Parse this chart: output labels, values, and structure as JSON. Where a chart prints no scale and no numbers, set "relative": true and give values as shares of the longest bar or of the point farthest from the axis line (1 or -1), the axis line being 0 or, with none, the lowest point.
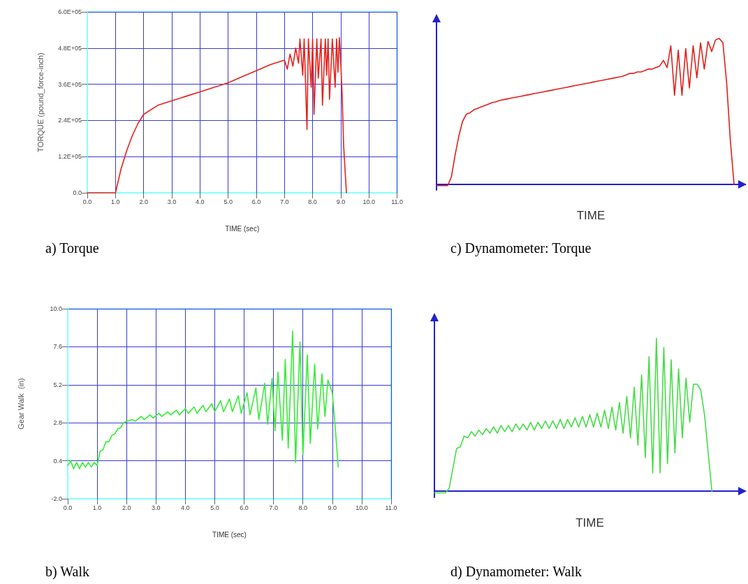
{
  "chart_data": [
    {
      "type": "line",
      "title": "a) Torque",
      "xlabel": "TIME (sec)",
      "ylabel": "TORQUE (pound_force-inch)",
      "grid": true,
      "marker": "none",
      "line_style": "solid",
      "xlim": [
        0,
        11
      ],
      "xticks": [
        {
          "value": 0,
          "label": "0.0"
        },
        {
          "value": 1,
          "label": "1.0"
        },
        {
          "value": 2,
          "label": "2.0"
        },
        {
          "value": 3,
          "label": "3.0"
        },
        {
          "value": 4,
          "label": "4.0"
        },
        {
          "value": 5,
          "label": "5.0"
        },
        {
          "value": 6,
          "label": "6.0"
        },
        {
          "value": 7,
          "label": "7.0"
        },
        {
          "value": 8,
          "label": "8.0"
        },
        {
          "value": 9,
          "label": "9.0"
        },
        {
          "value": 10,
          "label": "10.0"
        },
        {
          "value": 11,
          "label": "11.0"
        }
      ],
      "ylim": [
        0,
        600000
      ],
      "yticks": [
        {
          "value": 0,
          "label": "0.0"
        },
        {
          "value": 120000,
          "label": "1.2E+05"
        },
        {
          "value": 240000,
          "label": "2.4E+05"
        },
        {
          "value": 360000,
          "label": "3.6E+05"
        },
        {
          "value": 480000,
          "label": "4.8E+05"
        },
        {
          "value": 600000,
          "label": "6.0E+05"
        }
      ],
      "x": [
        0,
        1,
        1.1,
        1.2,
        1.4,
        1.6,
        1.8,
        2,
        2.5,
        3,
        3.5,
        4,
        4.5,
        5,
        5.5,
        6,
        6.5,
        7,
        7.1,
        7.2,
        7.3,
        7.4,
        7.5,
        7.55,
        7.65,
        7.7,
        7.8,
        7.85,
        7.95,
        8,
        8.05,
        8.15,
        8.2,
        8.3,
        8.35,
        8.45,
        8.5,
        8.55,
        8.6,
        8.7,
        8.8,
        8.85,
        8.9,
        8.95,
        9,
        9.05,
        9.1,
        9.2
      ],
      "series": [
        {
          "color": "#e8201a",
          "values": [
            0,
            0,
            40000,
            80000,
            140000,
            190000,
            230000,
            260000,
            290000,
            305000,
            320000,
            335000,
            350000,
            365000,
            385000,
            405000,
            425000,
            440000,
            410000,
            460000,
            420000,
            480000,
            430000,
            510000,
            390000,
            510000,
            210000,
            510000,
            350000,
            510000,
            260000,
            510000,
            380000,
            510000,
            290000,
            510000,
            390000,
            510000,
            310000,
            510000,
            350000,
            510000,
            400000,
            515000,
            430000,
            320000,
            160000,
            0
          ]
        }
      ]
    },
    {
      "type": "line",
      "title": "b) Walk",
      "xlabel": "TIME (sec)",
      "ylabel": "Gear Walk  (in)",
      "grid": true,
      "marker": "none",
      "line_style": "solid",
      "xlim": [
        0,
        11
      ],
      "xticks": [
        {
          "value": 0,
          "label": "0.0"
        },
        {
          "value": 1,
          "label": "1.0"
        },
        {
          "value": 2,
          "label": "2.0"
        },
        {
          "value": 3,
          "label": "3.0"
        },
        {
          "value": 4,
          "label": "4.0"
        },
        {
          "value": 5,
          "label": "5.0"
        },
        {
          "value": 6,
          "label": "6.0"
        },
        {
          "value": 7,
          "label": "7.0"
        },
        {
          "value": 8,
          "label": "8.0"
        },
        {
          "value": 9,
          "label": "9.0"
        },
        {
          "value": 10,
          "label": "10.0"
        },
        {
          "value": 11,
          "label": "11.0"
        }
      ],
      "ylim": [
        -2,
        10
      ],
      "yticks": [
        {
          "value": -2,
          "label": "-2.0"
        },
        {
          "value": 0.4,
          "label": "0.4"
        },
        {
          "value": 2.8,
          "label": "2.8"
        },
        {
          "value": 5.2,
          "label": "5.2"
        },
        {
          "value": 7.6,
          "label": "7.6"
        },
        {
          "value": 10,
          "label": "10.0"
        }
      ],
      "x": [
        0,
        0.1,
        0.2,
        0.3,
        0.4,
        0.5,
        0.6,
        0.7,
        0.8,
        0.9,
        1,
        1.1,
        1.2,
        1.3,
        1.4,
        1.5,
        1.6,
        1.7,
        1.8,
        1.9,
        2,
        2.2,
        2.3,
        2.5,
        2.6,
        2.8,
        2.9,
        3.1,
        3.2,
        3.4,
        3.5,
        3.7,
        3.8,
        4,
        4.1,
        4.3,
        4.4,
        4.6,
        4.7,
        4.9,
        5,
        5.2,
        5.3,
        5.5,
        5.6,
        5.8,
        5.9,
        6.1,
        6.2,
        6.4,
        6.5,
        6.7,
        6.8,
        6.95,
        7.05,
        7.15,
        7.3,
        7.4,
        7.5,
        7.65,
        7.75,
        7.9,
        8,
        8.15,
        8.25,
        8.4,
        8.5,
        8.65,
        8.75,
        8.85,
        9,
        9.1,
        9.2
      ],
      "series": [
        {
          "color": "#33ee33",
          "values": [
            0.1,
            0.4,
            -0.1,
            0.3,
            -0.1,
            0.3,
            0,
            0.3,
            0,
            0.3,
            0.1,
            1,
            1.1,
            1.6,
            1.6,
            2,
            2.1,
            2.4,
            2.5,
            2.8,
            2.9,
            3,
            2.9,
            3.2,
            3,
            3.3,
            3.1,
            3.4,
            3.2,
            3.5,
            3.3,
            3.6,
            3.3,
            3.7,
            3.4,
            3.8,
            3.4,
            3.9,
            3.5,
            4,
            3.5,
            4.2,
            3.5,
            4.3,
            3.5,
            4.5,
            3.4,
            4.7,
            3.3,
            5,
            3,
            5.3,
            2.7,
            5.6,
            2.3,
            6,
            1.7,
            6.8,
            1.2,
            8.6,
            0.3,
            7.9,
            0.8,
            7.1,
            1.5,
            6.5,
            2.4,
            5.9,
            3.2,
            5.5,
            4.7,
            2.5,
            0
          ]
        }
      ]
    },
    {
      "type": "line",
      "title": "c) Dynamometer: Torque",
      "xlabel": "TIME",
      "relative": true,
      "grid": false,
      "marker": "none",
      "line_style": "solid",
      "categories": [
        null,
        null,
        null,
        null,
        null,
        null,
        null,
        null,
        null,
        null,
        null,
        null,
        null,
        null,
        null,
        null,
        null,
        null,
        null,
        null,
        null,
        null,
        null,
        null,
        null,
        null,
        null,
        null,
        null,
        null,
        null,
        null,
        null,
        null,
        null,
        null,
        null,
        null,
        null,
        null,
        null,
        null,
        null,
        null,
        null,
        null,
        null,
        null,
        null,
        null,
        null,
        null,
        null,
        null,
        null,
        null,
        null,
        null,
        null,
        null,
        null,
        null,
        null,
        null,
        null,
        null,
        null,
        null,
        null,
        null,
        null,
        null,
        null,
        null,
        null,
        null,
        null,
        null,
        null,
        null,
        null,
        null,
        null,
        null
      ],
      "series": [
        {
          "color": "#e0201a",
          "values": [
            -0.01,
            -0.01,
            -0.01,
            -0.01,
            0.05,
            0.2,
            0.33,
            0.43,
            0.48,
            0.49,
            0.51,
            0.52,
            0.53,
            0.54,
            0.55,
            0.56,
            0.565,
            0.575,
            0.58,
            0.585,
            0.59,
            0.595,
            0.6,
            0.605,
            0.61,
            0.615,
            0.62,
            0.625,
            0.63,
            0.635,
            0.64,
            0.645,
            0.65,
            0.655,
            0.66,
            0.665,
            0.67,
            0.675,
            0.68,
            0.685,
            0.69,
            0.695,
            0.7,
            0.705,
            0.71,
            0.715,
            0.72,
            0.725,
            0.73,
            0.735,
            0.74,
            0.75,
            0.76,
            0.76,
            0.77,
            0.77,
            0.78,
            0.79,
            0.79,
            0.8,
            0.81,
            0.85,
            0.8,
            0.95,
            0.61,
            0.92,
            0.61,
            0.93,
            0.66,
            0.95,
            0.73,
            0.97,
            0.79,
            0.98,
            0.91,
            0.99,
            1,
            0.97,
            0.7,
            0.3,
            0,
            null,
            null,
            null
          ]
        }
      ]
    },
    {
      "type": "line",
      "title": "d) Dynamometer: Walk",
      "xlabel": "TIME",
      "relative": true,
      "grid": false,
      "marker": "none",
      "line_style": "solid",
      "categories": [
        null,
        null,
        null,
        null,
        null,
        null,
        null,
        null,
        null,
        null,
        null,
        null,
        null,
        null,
        null,
        null,
        null,
        null,
        null,
        null,
        null,
        null,
        null,
        null,
        null,
        null,
        null,
        null,
        null,
        null,
        null,
        null,
        null,
        null,
        null,
        null,
        null,
        null,
        null,
        null,
        null,
        null,
        null,
        null,
        null,
        null,
        null,
        null,
        null,
        null,
        null,
        null,
        null,
        null,
        null,
        null,
        null,
        null,
        null,
        null,
        null,
        null,
        null,
        null,
        null,
        null,
        null,
        null,
        null,
        null,
        null,
        null,
        null,
        null,
        null,
        null,
        null,
        null,
        null,
        null,
        null,
        null,
        null,
        null,
        null
      ],
      "series": [
        {
          "color": "#44dd44",
          "values": [
            -0.01,
            -0.01,
            -0.01,
            -0.01,
            0.02,
            0.15,
            0.28,
            0.29,
            0.36,
            0.35,
            0.39,
            0.36,
            0.4,
            0.37,
            0.41,
            0.38,
            0.42,
            0.38,
            0.43,
            0.39,
            0.43,
            0.39,
            0.44,
            0.4,
            0.44,
            0.4,
            0.45,
            0.4,
            0.45,
            0.41,
            0.46,
            0.41,
            0.46,
            0.41,
            0.47,
            0.41,
            0.47,
            0.42,
            0.48,
            0.42,
            0.49,
            0.42,
            0.5,
            0.42,
            0.51,
            0.42,
            0.53,
            0.41,
            0.55,
            0.4,
            0.58,
            0.38,
            0.62,
            0.35,
            0.68,
            0.3,
            0.76,
            0.22,
            0.88,
            0.12,
            1,
            0.12,
            0.94,
            0.18,
            0.86,
            0.25,
            0.8,
            0.35,
            0.74,
            0.45,
            0.7,
            0.7,
            0.66,
            0.5,
            0.25,
            0,
            null,
            null,
            null,
            null,
            null,
            null,
            null,
            null,
            null
          ]
        }
      ]
    }
  ]
}
